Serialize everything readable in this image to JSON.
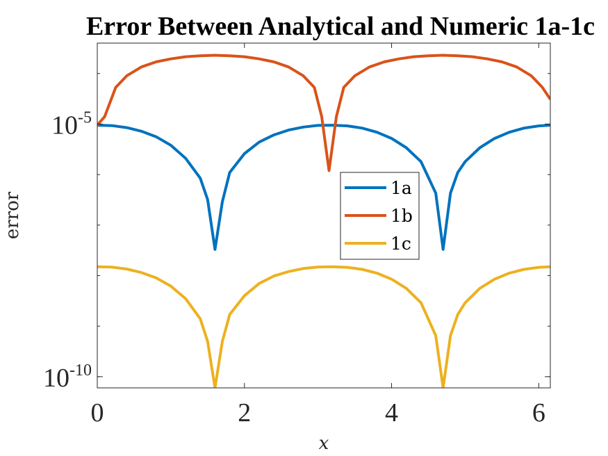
{
  "chart_data": {
    "type": "line",
    "title": "Error Between Analytical and Numeric 1a-1c",
    "xlabel": "x",
    "ylabel": "error",
    "xlim": [
      0,
      6.1575
    ],
    "ylim": [
      6e-11,
      0.0004
    ],
    "yscale": "log",
    "xticks": [
      0,
      2,
      4,
      6
    ],
    "yticks": [
      {
        "value": 1e-10,
        "base": "10",
        "exp": "-10"
      },
      {
        "value": 1e-05,
        "base": "10",
        "exp": "-5"
      }
    ],
    "grid": false,
    "legend_position": "center-right",
    "series": [
      {
        "name": "1a",
        "color": "#0072BD",
        "x": [
          0,
          0.2,
          0.4,
          0.6,
          0.8,
          1.0,
          1.2,
          1.4,
          1.5,
          1.6,
          1.7,
          1.8,
          2.0,
          2.2,
          2.4,
          2.6,
          2.8,
          3.0,
          3.2,
          3.4,
          3.6,
          3.8,
          4.0,
          4.2,
          4.4,
          4.6,
          4.7,
          4.8,
          4.9,
          5.0,
          5.2,
          5.4,
          5.6,
          5.8,
          6.0,
          6.15
        ],
        "y": [
          9.5e-06,
          9.3e-06,
          8.5e-06,
          7.2e-06,
          5.6e-06,
          3.8e-06,
          2.1e-06,
          8.5e-07,
          3.2e-07,
          3.3e-08,
          2.9e-07,
          1.1e-06,
          2.6e-06,
          4.4e-06,
          6.1e-06,
          7.6e-06,
          8.7e-06,
          9.4e-06,
          9.5e-06,
          9.2e-06,
          8.3e-06,
          6.9e-06,
          5.2e-06,
          3.4e-06,
          1.8e-06,
          4.3e-07,
          3.3e-08,
          4.3e-07,
          1.1e-06,
          1.8e-06,
          3.4e-06,
          5.2e-06,
          6.9e-06,
          8.3e-06,
          9.2e-06,
          9.5e-06
        ]
      },
      {
        "name": "1b",
        "color": "#D95319",
        "x": [
          0,
          0.1,
          0.25,
          0.4,
          0.6,
          0.8,
          1.0,
          1.2,
          1.4,
          1.6,
          1.8,
          2.0,
          2.2,
          2.4,
          2.6,
          2.8,
          2.95,
          3.05,
          3.15,
          3.25,
          3.35,
          3.5,
          3.7,
          3.9,
          4.1,
          4.3,
          4.5,
          4.7,
          4.9,
          5.1,
          5.3,
          5.5,
          5.7,
          5.9,
          6.05,
          6.15
        ],
        "y": [
          9.5e-06,
          1.4e-05,
          5.3e-05,
          9e-05,
          0.000135,
          0.00017,
          0.000195,
          0.000215,
          0.000225,
          0.00023,
          0.000225,
          0.000215,
          0.000195,
          0.00017,
          0.000135,
          9e-05,
          5.3e-05,
          1.4e-05,
          1.2e-06,
          1.4e-05,
          5.3e-05,
          9e-05,
          0.000135,
          0.00017,
          0.000195,
          0.000215,
          0.000225,
          0.00023,
          0.000225,
          0.000215,
          0.000195,
          0.00017,
          0.000135,
          9e-05,
          5.3e-05,
          3.2e-05
        ]
      },
      {
        "name": "1c",
        "color": "#EDB120",
        "x": [
          0,
          0.2,
          0.4,
          0.6,
          0.8,
          1.0,
          1.2,
          1.4,
          1.5,
          1.6,
          1.7,
          1.8,
          2.0,
          2.2,
          2.4,
          2.6,
          2.8,
          3.0,
          3.2,
          3.4,
          3.6,
          3.8,
          4.0,
          4.2,
          4.4,
          4.6,
          4.7,
          4.8,
          4.9,
          5.0,
          5.2,
          5.4,
          5.6,
          5.8,
          6.0,
          6.15
        ],
        "y": [
          1.5e-08,
          1.47e-08,
          1.35e-08,
          1.15e-08,
          9e-09,
          6.2e-09,
          3.5e-09,
          1.4e-09,
          5e-10,
          6e-11,
          5e-10,
          1.7e-09,
          4e-09,
          7e-09,
          9.8e-09,
          1.2e-08,
          1.38e-08,
          1.48e-08,
          1.5e-08,
          1.46e-08,
          1.33e-08,
          1.12e-08,
          8.5e-09,
          5.6e-09,
          2.9e-09,
          6.5e-10,
          6e-11,
          6.5e-10,
          1.7e-09,
          2.9e-09,
          5.6e-09,
          8.5e-09,
          1.12e-08,
          1.33e-08,
          1.46e-08,
          1.5e-08
        ]
      }
    ]
  }
}
